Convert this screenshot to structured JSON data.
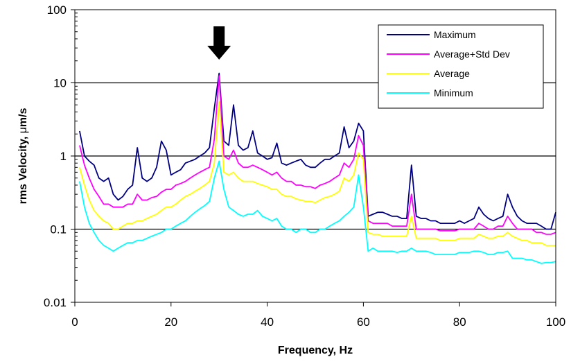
{
  "chart_data": {
    "type": "line",
    "title": "",
    "xlabel": "Frequency, Hz",
    "ylabel_main": "rms Velocity, ",
    "ylabel_unit_symbol": "μ",
    "ylabel_unit_tail": "m/s",
    "x_scale": "linear",
    "y_scale": "log",
    "xlim": [
      0,
      100
    ],
    "ylim": [
      0.01,
      100
    ],
    "xticks": [
      0,
      20,
      40,
      60,
      80,
      100
    ],
    "xtick_labels": [
      "0",
      "20",
      "40",
      "60",
      "80",
      "100"
    ],
    "yticks": [
      0.01,
      0.1,
      1,
      10,
      100
    ],
    "ytick_labels": [
      "0.01",
      "0.1",
      "1",
      "10",
      "100"
    ],
    "grid": "horizontal major lines at 10, 1, 0.1",
    "legend_position": "top-right",
    "annotation": {
      "type": "down-arrow",
      "x": 30
    },
    "x": [
      1,
      2,
      3,
      4,
      5,
      6,
      7,
      8,
      9,
      10,
      11,
      12,
      13,
      14,
      15,
      16,
      17,
      18,
      19,
      20,
      21,
      22,
      23,
      24,
      25,
      26,
      27,
      28,
      29,
      30,
      31,
      32,
      33,
      34,
      35,
      36,
      37,
      38,
      39,
      40,
      41,
      42,
      43,
      44,
      45,
      46,
      47,
      48,
      49,
      50,
      51,
      52,
      53,
      54,
      55,
      56,
      57,
      58,
      59,
      60,
      61,
      62,
      63,
      64,
      65,
      66,
      67,
      68,
      69,
      70,
      71,
      72,
      73,
      74,
      75,
      76,
      77,
      78,
      79,
      80,
      81,
      82,
      83,
      84,
      85,
      86,
      87,
      88,
      89,
      90,
      91,
      92,
      93,
      94,
      95,
      96,
      97,
      98,
      99,
      100
    ],
    "series": [
      {
        "name": "Maximum",
        "color": "#000080",
        "values": [
          2.2,
          1.0,
          0.85,
          0.75,
          0.5,
          0.45,
          0.5,
          0.3,
          0.25,
          0.28,
          0.35,
          0.4,
          1.3,
          0.5,
          0.45,
          0.5,
          0.7,
          1.6,
          1.2,
          0.55,
          0.6,
          0.65,
          0.8,
          0.85,
          0.9,
          1.0,
          1.1,
          1.3,
          4.5,
          13.5,
          1.6,
          1.4,
          5.0,
          1.4,
          1.2,
          1.3,
          2.2,
          1.1,
          1.0,
          0.9,
          0.95,
          1.5,
          0.8,
          0.75,
          0.8,
          0.85,
          0.9,
          0.75,
          0.7,
          0.7,
          0.8,
          0.9,
          0.9,
          1.0,
          1.1,
          2.5,
          1.3,
          1.6,
          2.8,
          2.2,
          0.15,
          0.16,
          0.17,
          0.17,
          0.16,
          0.15,
          0.15,
          0.14,
          0.14,
          0.75,
          0.15,
          0.14,
          0.14,
          0.13,
          0.13,
          0.12,
          0.12,
          0.12,
          0.12,
          0.13,
          0.12,
          0.13,
          0.14,
          0.2,
          0.16,
          0.14,
          0.13,
          0.14,
          0.15,
          0.3,
          0.2,
          0.15,
          0.13,
          0.12,
          0.12,
          0.12,
          0.11,
          0.1,
          0.1,
          0.17
        ]
      },
      {
        "name": "Average+Std Dev",
        "color": "#ff00ff",
        "values": [
          1.4,
          0.75,
          0.5,
          0.35,
          0.28,
          0.22,
          0.22,
          0.2,
          0.2,
          0.2,
          0.22,
          0.22,
          0.3,
          0.25,
          0.25,
          0.27,
          0.28,
          0.32,
          0.35,
          0.35,
          0.4,
          0.42,
          0.45,
          0.5,
          0.55,
          0.6,
          0.65,
          0.7,
          1.7,
          12.5,
          1.0,
          0.9,
          1.2,
          0.8,
          0.7,
          0.7,
          0.75,
          0.7,
          0.65,
          0.6,
          0.55,
          0.6,
          0.5,
          0.45,
          0.45,
          0.4,
          0.4,
          0.38,
          0.38,
          0.36,
          0.4,
          0.42,
          0.45,
          0.5,
          0.55,
          0.8,
          0.7,
          0.9,
          1.9,
          1.4,
          0.13,
          0.12,
          0.12,
          0.12,
          0.12,
          0.11,
          0.11,
          0.11,
          0.11,
          0.3,
          0.1,
          0.1,
          0.1,
          0.1,
          0.1,
          0.095,
          0.095,
          0.095,
          0.095,
          0.1,
          0.1,
          0.1,
          0.1,
          0.12,
          0.11,
          0.1,
          0.1,
          0.11,
          0.11,
          0.15,
          0.12,
          0.1,
          0.1,
          0.1,
          0.1,
          0.09,
          0.09,
          0.085,
          0.085,
          0.09
        ]
      },
      {
        "name": "Average",
        "color": "#ffff00",
        "values": [
          0.7,
          0.4,
          0.25,
          0.18,
          0.15,
          0.13,
          0.12,
          0.1,
          0.1,
          0.11,
          0.12,
          0.12,
          0.13,
          0.13,
          0.14,
          0.15,
          0.16,
          0.18,
          0.2,
          0.2,
          0.22,
          0.25,
          0.28,
          0.3,
          0.33,
          0.36,
          0.4,
          0.45,
          0.8,
          5.5,
          0.6,
          0.55,
          0.6,
          0.5,
          0.45,
          0.45,
          0.45,
          0.42,
          0.4,
          0.38,
          0.35,
          0.35,
          0.3,
          0.28,
          0.28,
          0.26,
          0.25,
          0.24,
          0.24,
          0.23,
          0.25,
          0.27,
          0.28,
          0.3,
          0.33,
          0.5,
          0.45,
          0.55,
          1.1,
          0.9,
          0.09,
          0.085,
          0.085,
          0.08,
          0.08,
          0.08,
          0.08,
          0.08,
          0.08,
          0.15,
          0.075,
          0.075,
          0.075,
          0.075,
          0.075,
          0.07,
          0.07,
          0.07,
          0.07,
          0.075,
          0.075,
          0.075,
          0.075,
          0.085,
          0.08,
          0.075,
          0.075,
          0.08,
          0.08,
          0.09,
          0.08,
          0.075,
          0.07,
          0.07,
          0.065,
          0.065,
          0.065,
          0.06,
          0.06,
          0.06
        ]
      },
      {
        "name": "Minimum",
        "color": "#00ffff",
        "values": [
          0.45,
          0.2,
          0.12,
          0.09,
          0.07,
          0.06,
          0.055,
          0.05,
          0.055,
          0.06,
          0.065,
          0.065,
          0.07,
          0.07,
          0.075,
          0.08,
          0.085,
          0.09,
          0.1,
          0.1,
          0.11,
          0.12,
          0.13,
          0.15,
          0.17,
          0.19,
          0.21,
          0.24,
          0.5,
          0.85,
          0.35,
          0.2,
          0.18,
          0.16,
          0.15,
          0.16,
          0.16,
          0.18,
          0.15,
          0.14,
          0.13,
          0.14,
          0.11,
          0.1,
          0.1,
          0.09,
          0.1,
          0.1,
          0.09,
          0.09,
          0.1,
          0.1,
          0.11,
          0.12,
          0.13,
          0.15,
          0.17,
          0.2,
          0.55,
          0.2,
          0.05,
          0.055,
          0.05,
          0.05,
          0.05,
          0.05,
          0.048,
          0.05,
          0.05,
          0.055,
          0.05,
          0.05,
          0.05,
          0.048,
          0.045,
          0.045,
          0.045,
          0.045,
          0.045,
          0.048,
          0.048,
          0.048,
          0.05,
          0.05,
          0.048,
          0.045,
          0.045,
          0.048,
          0.048,
          0.05,
          0.04,
          0.04,
          0.04,
          0.038,
          0.038,
          0.036,
          0.034,
          0.035,
          0.035,
          0.036
        ]
      }
    ]
  }
}
